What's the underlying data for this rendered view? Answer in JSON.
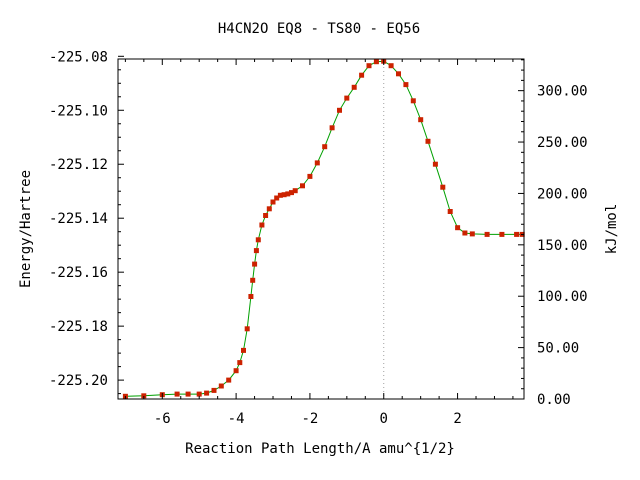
{
  "chart_data": {
    "type": "line",
    "title": "H4CN2O   EQ8 - TS80 - EQ56",
    "xlabel": "Reaction Path Length/A amu^{1/2}",
    "ylabel": "Energy/Hartree",
    "y2label": "kJ/mol",
    "xlim": [
      -7.2,
      3.8
    ],
    "ylim": [
      -225.207,
      -225.081
    ],
    "y2lim": [
      0,
      330.8
    ],
    "x_ticks": [
      -6,
      -4,
      -2,
      0,
      2
    ],
    "x_tick_labels": [
      "-6",
      "-4",
      "-2",
      "0",
      "2"
    ],
    "y_ticks": [
      -225.08,
      -225.1,
      -225.12,
      -225.14,
      -225.16,
      -225.18,
      -225.2
    ],
    "y_tick_labels": [
      "-225.08",
      "-225.10",
      "-225.12",
      "-225.14",
      "-225.16",
      "-225.18",
      "-225.20"
    ],
    "y2_ticks": [
      300,
      250,
      200,
      150,
      100,
      50,
      0
    ],
    "y2_tick_labels": [
      "300.00",
      "250.00",
      "200.00",
      "150.00",
      "100.00",
      "50.00",
      "0.00"
    ],
    "ts_marker_x": 0,
    "grid": false,
    "legend": "none",
    "colors": {
      "line": "#00a000",
      "marker": "#cc2200",
      "ts_line": "#a0a0a0",
      "frame": "#000000"
    },
    "series": [
      {
        "x": [
          -7.0,
          -6.5,
          -6.0,
          -5.6,
          -5.3,
          -5.0,
          -4.8,
          -4.6,
          -4.4,
          -4.2,
          -4.0,
          -3.9,
          -3.8,
          -3.7,
          -3.6,
          -3.55,
          -3.5,
          -3.45,
          -3.4,
          -3.3,
          -3.2,
          -3.1,
          -3.0,
          -2.9,
          -2.8,
          -2.7,
          -2.6,
          -2.5,
          -2.4,
          -2.2,
          -2.0,
          -1.8,
          -1.6,
          -1.4,
          -1.2,
          -1.0,
          -0.8,
          -0.6,
          -0.4,
          -0.2,
          0.0,
          0.2,
          0.4,
          0.6,
          0.8,
          1.0,
          1.2,
          1.4,
          1.6,
          1.8,
          2.0,
          2.2,
          2.4,
          2.8,
          3.2,
          3.6,
          3.75
        ],
        "y": [
          -225.206,
          -225.2058,
          -225.2054,
          -225.2052,
          -225.2052,
          -225.2052,
          -225.2048,
          -225.2038,
          -225.2022,
          -225.2,
          -225.1965,
          -225.1935,
          -225.189,
          -225.181,
          -225.169,
          -225.163,
          -225.157,
          -225.152,
          -225.148,
          -225.1425,
          -225.139,
          -225.1365,
          -225.134,
          -225.1325,
          -225.1315,
          -225.1313,
          -225.131,
          -225.1305,
          -225.1298,
          -225.128,
          -225.1245,
          -225.1195,
          -225.1135,
          -225.1065,
          -225.1,
          -225.0955,
          -225.0915,
          -225.087,
          -225.0835,
          -225.082,
          -225.0818,
          -225.0835,
          -225.0865,
          -225.0905,
          -225.0965,
          -225.1035,
          -225.1115,
          -225.12,
          -225.1285,
          -225.1375,
          -225.1435,
          -225.1455,
          -225.1458,
          -225.146,
          -225.146,
          -225.146,
          -225.146
        ]
      }
    ]
  }
}
